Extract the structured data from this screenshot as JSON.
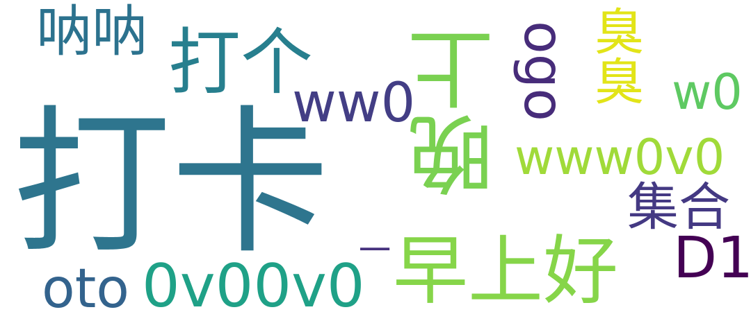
{
  "words": [
    {
      "id": "daka",
      "text": "打卡",
      "color": "#2e758e"
    },
    {
      "id": "wanshang",
      "text": "晚上",
      "color": "#7ad151"
    },
    {
      "id": "zaoshanghao",
      "text": "早上好",
      "color": "#86d549"
    },
    {
      "id": "dage",
      "text": "打个",
      "color": "#277f8e"
    },
    {
      "id": "nana",
      "text": "呐呐",
      "color": "#2c728e"
    },
    {
      "id": "ww0",
      "text": "ww0",
      "color": "#433e85"
    },
    {
      "id": "ogo",
      "text": "ogo",
      "color": "#472c7a"
    },
    {
      "id": "chouchou",
      "text": "臭臭",
      "color": "#e2e418"
    },
    {
      "id": "w0",
      "text": "w0",
      "color": "#5ec962"
    },
    {
      "id": "www0v0",
      "text": "www0v0",
      "color": "#a0da39"
    },
    {
      "id": "jihe",
      "text": "集合",
      "color": "#443983"
    },
    {
      "id": "d1",
      "text": "D1",
      "color": "#440154"
    },
    {
      "id": "dash",
      "text": "一",
      "color": "#46327e"
    },
    {
      "id": "oto",
      "text": "oto",
      "color": "#33638d"
    },
    {
      "id": "ov00v0",
      "text": "0v00v0",
      "color": "#1fa187"
    }
  ]
}
